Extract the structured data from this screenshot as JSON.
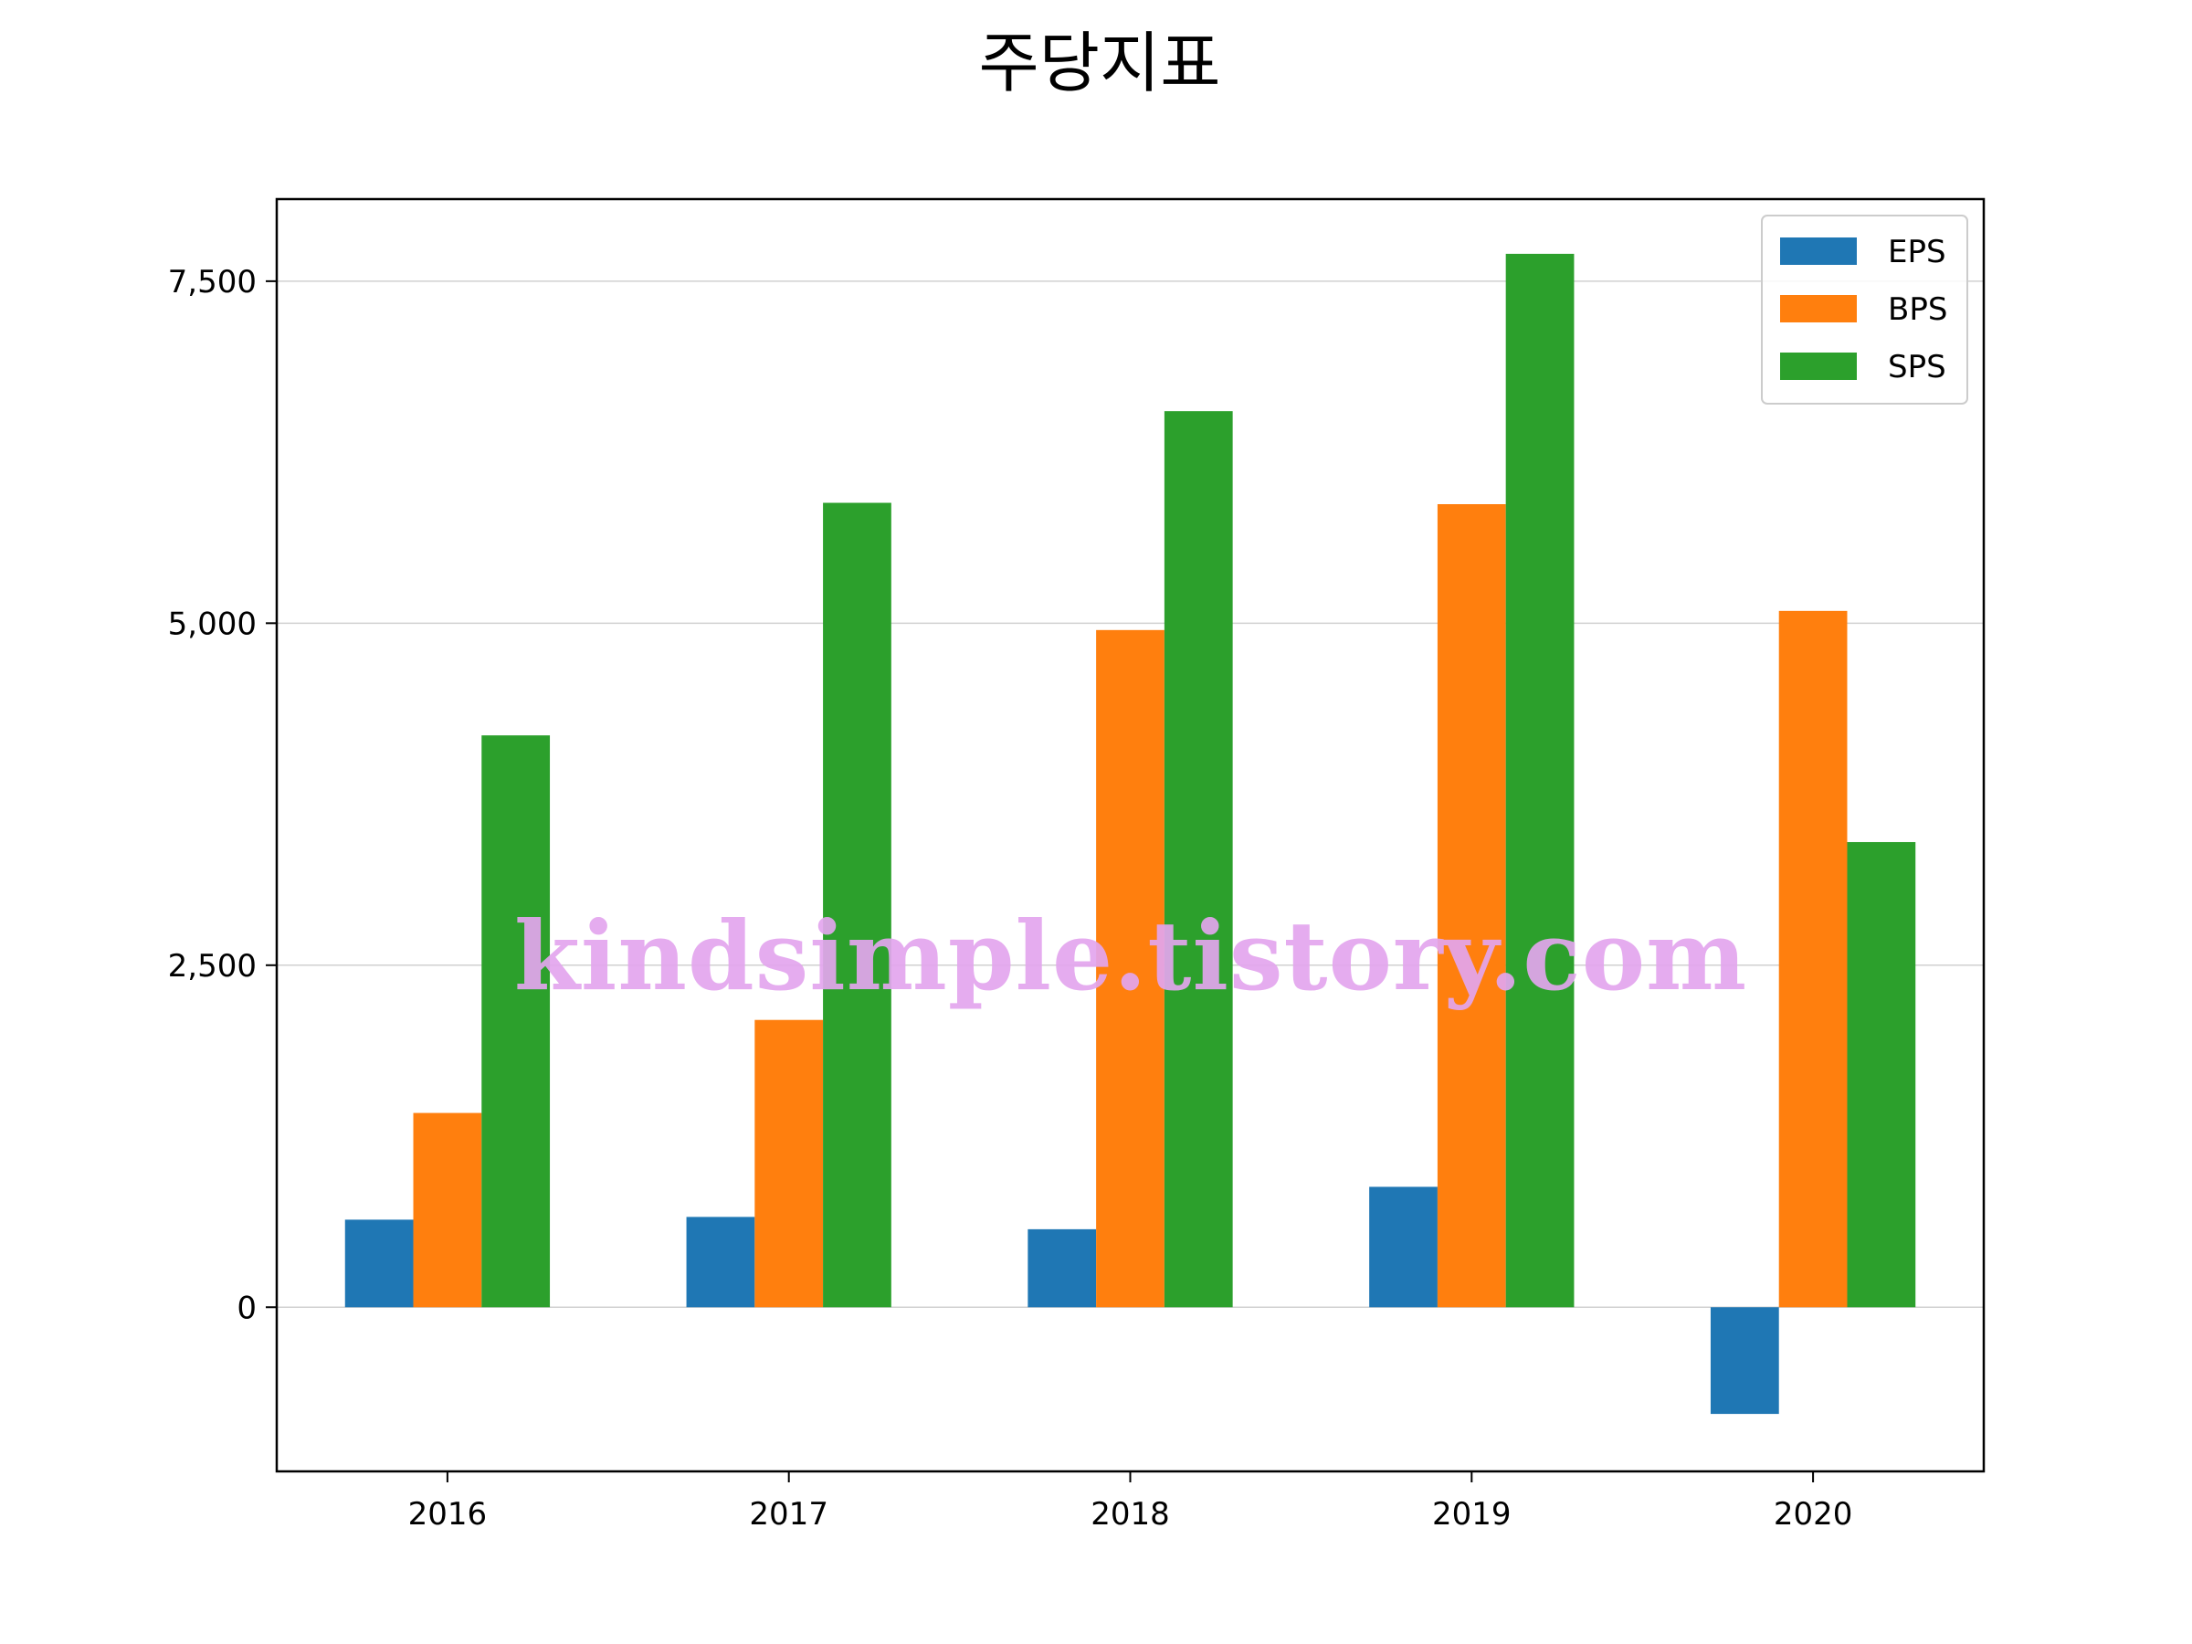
{
  "title": "주당지표",
  "watermark": "kindsimple.tistory.com",
  "chart_data": {
    "type": "bar",
    "title": "주당지표",
    "xlabel": "",
    "ylabel": "",
    "categories": [
      "2016",
      "2017",
      "2018",
      "2019",
      "2020"
    ],
    "series": [
      {
        "name": "EPS",
        "color": "#1f77b4",
        "values": [
          640,
          660,
          570,
          880,
          -780
        ]
      },
      {
        "name": "BPS",
        "color": "#ff7f0e",
        "values": [
          1420,
          2100,
          4950,
          5870,
          5090
        ]
      },
      {
        "name": "SPS",
        "color": "#2ca02c",
        "values": [
          4180,
          5880,
          6550,
          7700,
          3400
        ]
      }
    ],
    "ylim": [
      -1200,
      8100
    ],
    "yticks": [
      0,
      2500,
      5000,
      7500
    ],
    "ytick_labels": [
      "0",
      "2,500",
      "5,000",
      "7,500"
    ],
    "grid": "y",
    "legend_position": "top-right"
  }
}
